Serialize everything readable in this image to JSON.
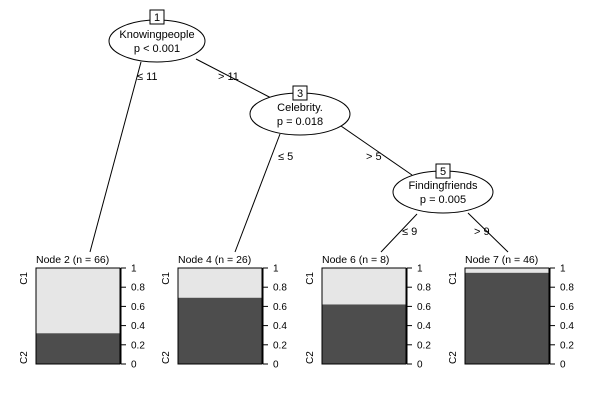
{
  "inner_nodes": [
    {
      "id": "1",
      "variable": "Knowingpeople",
      "p_value": "p < 0.001"
    },
    {
      "id": "3",
      "variable": "Celebrity.",
      "p_value": "p = 0.018"
    },
    {
      "id": "5",
      "variable": "Findingfriends",
      "p_value": "p = 0.005"
    }
  ],
  "edges": [
    {
      "from": "1",
      "to": "2",
      "label": "≤ 11"
    },
    {
      "from": "1",
      "to": "3",
      "label": "> 11"
    },
    {
      "from": "3",
      "to": "4",
      "label": "≤ 5"
    },
    {
      "from": "3",
      "to": "5",
      "label": "> 5"
    },
    {
      "from": "5",
      "to": "6",
      "label": "≤ 9"
    },
    {
      "from": "5",
      "to": "7",
      "label": "> 9"
    }
  ],
  "terminal_nodes": [
    {
      "id": "2",
      "title": "Node 2 (n = 66)",
      "c2_proportion": 0.32
    },
    {
      "id": "4",
      "title": "Node 4 (n = 26)",
      "c2_proportion": 0.69
    },
    {
      "id": "6",
      "title": "Node 6 (n = 8)",
      "c2_proportion": 0.62
    },
    {
      "id": "7",
      "title": "Node 7 (n = 46)",
      "c2_proportion": 0.95
    }
  ],
  "class_labels": {
    "top": "C1",
    "bottom": "C2"
  },
  "axis_ticks": [
    "0",
    "0.2",
    "0.4",
    "0.6",
    "0.8",
    "1"
  ],
  "colors": {
    "c1": "#e6e6e6",
    "c2": "#4d4d4d",
    "line": "#000000"
  }
}
